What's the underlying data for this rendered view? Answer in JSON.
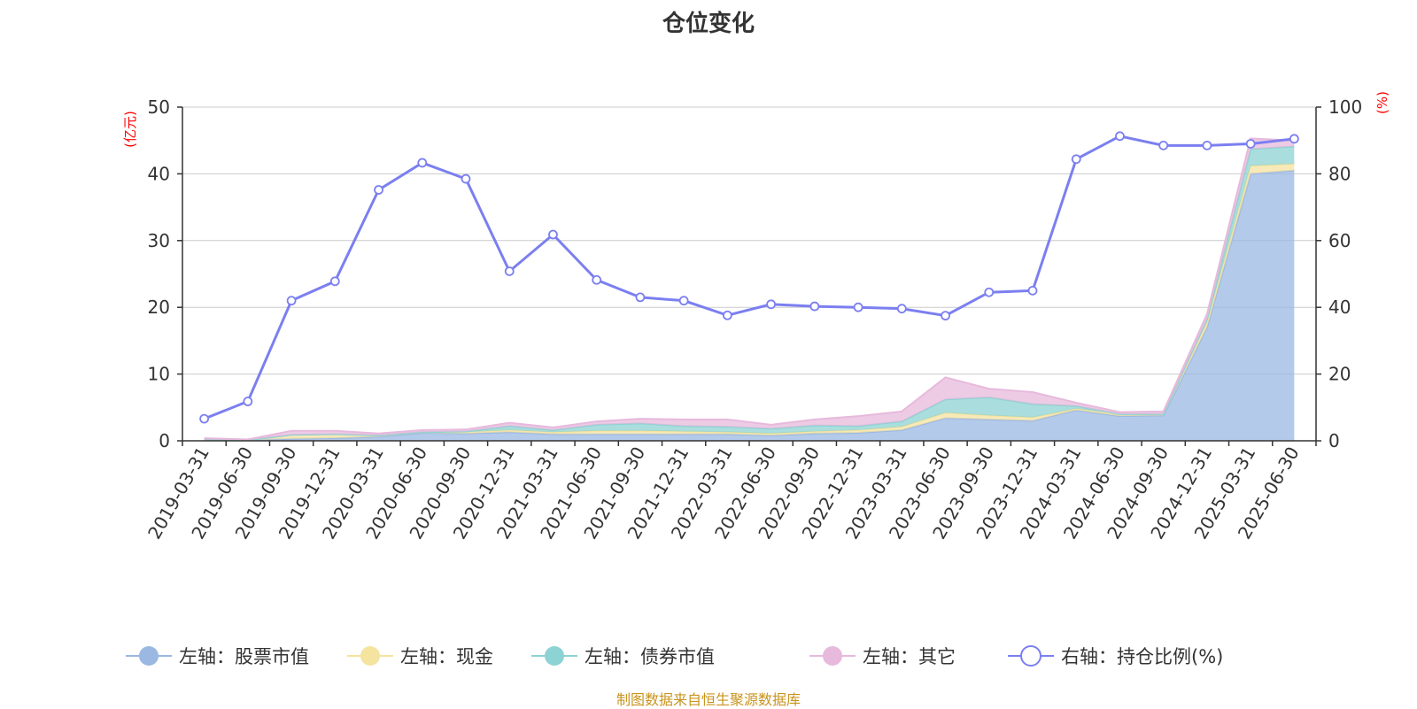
{
  "colors": {
    "stock": "#9bb8e3",
    "cash": "#f5e3a0",
    "bond": "#8dd3d3",
    "other": "#e7b9dc",
    "ratio": "#7b7ff0",
    "grid": "#cccccc",
    "unit": "#ff0000",
    "footer": "#c8941e"
  },
  "footer": "制图数据来自恒生聚源数据库",
  "chart_data": {
    "type": "area",
    "title": "仓位变化",
    "y_left_unit": "(亿元)",
    "y_right_unit": "(%)",
    "y_left_lim": [
      0,
      50
    ],
    "y_left_ticks": [
      "0",
      "10",
      "20",
      "30",
      "40",
      "50"
    ],
    "y_right_lim": [
      0,
      100
    ],
    "y_right_ticks": [
      "0",
      "20",
      "40",
      "60",
      "80",
      "100"
    ],
    "grid": true,
    "legend_position": "bottom",
    "categories": [
      "2019-03-31",
      "2019-06-30",
      "2019-09-30",
      "2019-12-31",
      "2020-03-31",
      "2020-06-30",
      "2020-09-30",
      "2020-12-31",
      "2021-03-31",
      "2021-06-30",
      "2021-09-30",
      "2021-12-31",
      "2022-03-31",
      "2022-06-30",
      "2022-09-30",
      "2022-12-31",
      "2023-03-31",
      "2023-06-30",
      "2023-09-30",
      "2023-12-31",
      "2024-03-31",
      "2024-06-30",
      "2024-09-30",
      "2024-12-31",
      "2025-03-31",
      "2025-06-30"
    ],
    "stacked_series": [
      {
        "name": "左轴：股票市值",
        "axis": "left",
        "values": [
          0.1,
          0.1,
          0.3,
          0.4,
          0.6,
          1.2,
          1.1,
          1.3,
          1.0,
          1.0,
          1.0,
          1.0,
          1.0,
          0.8,
          1.1,
          1.2,
          1.6,
          3.4,
          3.2,
          3.0,
          4.6,
          3.7,
          3.8,
          17.0,
          40.0,
          40.5
        ]
      },
      {
        "name": "左轴：现金",
        "axis": "left",
        "values": [
          0.1,
          0.0,
          0.6,
          0.6,
          0.2,
          0.1,
          0.2,
          0.3,
          0.3,
          0.5,
          0.5,
          0.4,
          0.3,
          0.3,
          0.3,
          0.4,
          0.5,
          0.8,
          0.6,
          0.5,
          0.2,
          0.3,
          0.2,
          0.8,
          1.2,
          1.0
        ]
      },
      {
        "name": "左轴：债券市值",
        "axis": "left",
        "values": [
          0.0,
          0.0,
          0.0,
          0.0,
          0.0,
          0.0,
          0.1,
          0.6,
          0.3,
          0.9,
          1.1,
          0.8,
          0.8,
          0.7,
          0.9,
          0.6,
          0.8,
          2.0,
          2.7,
          2.0,
          0.4,
          0.0,
          0.0,
          0.4,
          2.5,
          2.6
        ]
      },
      {
        "name": "左轴：其它",
        "axis": "left",
        "values": [
          0.2,
          0.1,
          0.6,
          0.5,
          0.3,
          0.3,
          0.3,
          0.5,
          0.4,
          0.5,
          0.7,
          1.0,
          1.1,
          0.6,
          0.9,
          1.5,
          1.5,
          3.3,
          1.3,
          1.8,
          0.5,
          0.3,
          0.4,
          0.8,
          1.6,
          0.9
        ]
      }
    ],
    "line_series": {
      "name": "右轴：持仓比例(%)",
      "axis": "right",
      "values": [
        6.6,
        11.8,
        42.0,
        47.8,
        75.2,
        83.3,
        78.5,
        50.8,
        61.8,
        48.2,
        43.0,
        42.0,
        37.6,
        40.9,
        40.3,
        40.0,
        39.6,
        37.5,
        44.5,
        45.0,
        84.4,
        91.3,
        88.5,
        88.5,
        89.0,
        90.5
      ]
    }
  }
}
